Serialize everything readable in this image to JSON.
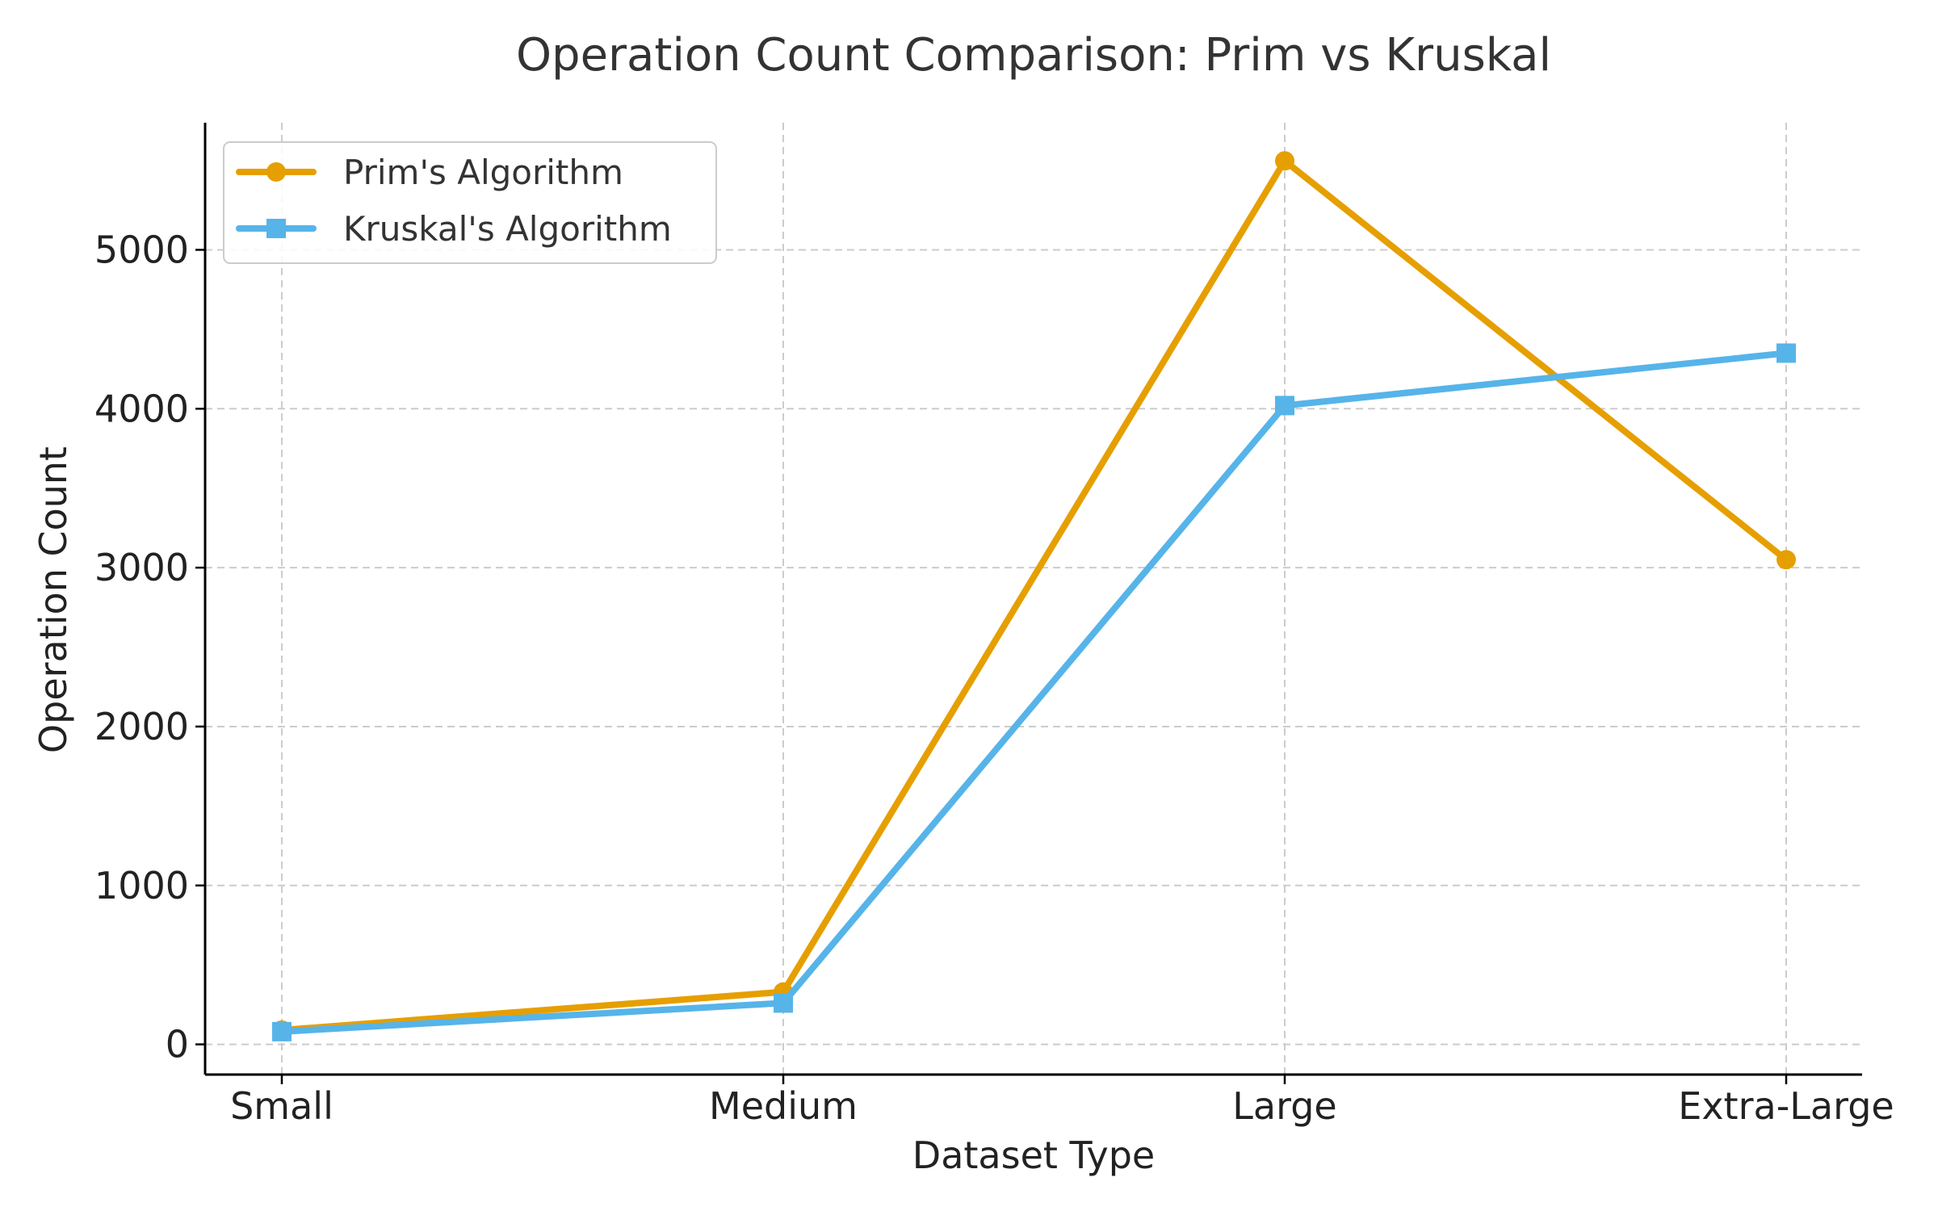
{
  "chart_data": {
    "type": "line",
    "title": "Operation Count Comparison: Prim vs Kruskal",
    "xlabel": "Dataset Type",
    "ylabel": "Operation Count",
    "categories": [
      "Small",
      "Medium",
      "Large",
      "Extra-Large"
    ],
    "ylim": [
      -190,
      5800
    ],
    "yticks": [
      0,
      1000,
      2000,
      3000,
      4000,
      5000
    ],
    "grid": true,
    "legend_position": "top-left",
    "series": [
      {
        "name": "Prim's Algorithm",
        "values": [
          90,
          330,
          5560,
          3050
        ],
        "color": "#E69F00",
        "marker": "circle"
      },
      {
        "name": "Kruskal's Algorithm",
        "values": [
          80,
          260,
          4020,
          4350
        ],
        "color": "#56B4E9",
        "marker": "square"
      }
    ]
  }
}
